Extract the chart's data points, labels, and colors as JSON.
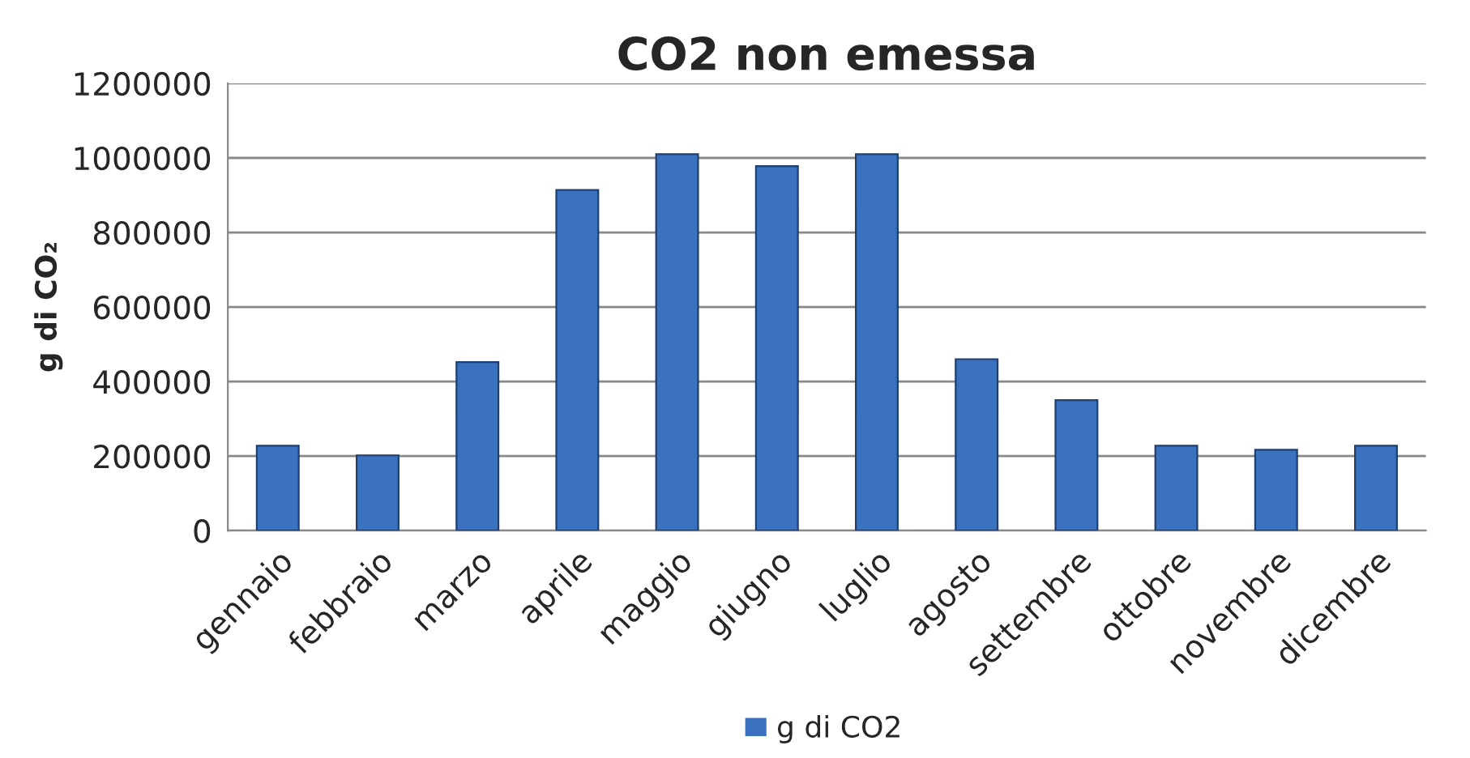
{
  "chart_data": {
    "type": "bar",
    "title": "CO2 non emessa",
    "ylabel": "g di CO₂",
    "categories": [
      "gennaio",
      "febbraio",
      "marzo",
      "aprile",
      "maggio",
      "giugno",
      "luglio",
      "agosto",
      "settembre",
      "ottobre",
      "novembre",
      "dicembre"
    ],
    "series": [
      {
        "name": "g di CO2",
        "color": "#3a72c0",
        "values": [
          228000,
          202000,
          452000,
          914000,
          1010000,
          978000,
          1010000,
          460000,
          350000,
          228000,
          217000,
          228000
        ]
      }
    ],
    "ylim": [
      0,
      1200000
    ],
    "yticks": [
      0,
      200000,
      400000,
      600000,
      800000,
      1000000,
      1200000
    ],
    "grid": "y",
    "legend": "bottom"
  }
}
